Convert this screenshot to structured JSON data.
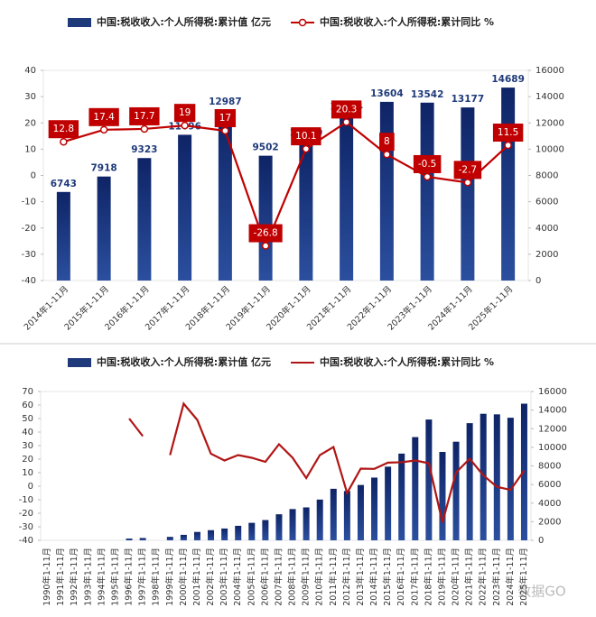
{
  "chart_data": [
    {
      "type": "bar",
      "legend": "top",
      "data_labels": true,
      "markers": true,
      "categories": [
        "2014年1-11月",
        "2015年1-11月",
        "2016年1-11月",
        "2017年1-11月",
        "2018年1-11月",
        "2019年1-11月",
        "2020年1-11月",
        "2021年1-11月",
        "2022年1-11月",
        "2023年1-11月",
        "2024年1-11月",
        "2025年1-11月"
      ],
      "series": [
        {
          "name": "中国:税收收入:个人所得税:累计值 亿元",
          "color": "#1f3a7a",
          "axis": "y2",
          "values": [
            6743,
            7918,
            9323,
            11096,
            12987,
            9502,
            10600,
            12594,
            13604,
            13542,
            13177,
            14689
          ]
        },
        {
          "name": "中国:税收收入:个人所得税:累计同比 %",
          "color": "#c00000",
          "type": "line",
          "axis": "y",
          "values": [
            12.8,
            17.4,
            17.7,
            19,
            17,
            -26.8,
            10.1,
            20.3,
            8,
            -0.5,
            -2.7,
            11.5
          ]
        }
      ],
      "ylim": [
        -40,
        40
      ],
      "yticks": [
        -40,
        -30,
        -20,
        -10,
        0,
        10,
        20,
        30,
        40
      ],
      "y2lim": [
        0,
        16000
      ],
      "y2ticks": [
        0,
        2000,
        4000,
        6000,
        8000,
        10000,
        12000,
        14000,
        16000
      ]
    },
    {
      "type": "bar",
      "legend": "top",
      "data_labels": false,
      "markers": false,
      "categories": [
        "1990年1-11月",
        "1991年1-11月",
        "1992年1-11月",
        "1993年1-11月",
        "1994年1-11月",
        "1995年1-11月",
        "1996年1-11月",
        "1997年1-11月",
        "1998年1-11月",
        "1999年1-11月",
        "2000年1-11月",
        "2001年1-11月",
        "2002年1-11月",
        "2003年1-11月",
        "2004年1-11月",
        "2005年1-11月",
        "2006年1-11月",
        "2007年1-11月",
        "2008年1-11月",
        "2009年1-11月",
        "2010年1-11月",
        "2011年1-11月",
        "2012年1-11月",
        "2013年1-11月",
        "2014年1-11月",
        "2015年1-11月",
        "2016年1-11月",
        "2017年1-11月",
        "2018年1-11月",
        "2019年1-11月",
        "2020年1-11月",
        "2021年1-11月",
        "2022年1-11月",
        "2023年1-11月",
        "2024年1-11月",
        "2025年1-11月"
      ],
      "series": [
        {
          "name": "中国:税收收入:个人所得税:累计值 亿元",
          "color": "#1f3a7a",
          "axis": "y2",
          "values": [
            null,
            null,
            null,
            null,
            null,
            null,
            190,
            250,
            null,
            370,
            590,
            900,
            1090,
            1270,
            1560,
            1880,
            2180,
            2800,
            3360,
            3540,
            4380,
            5540,
            5300,
            5950,
            6743,
            7918,
            9323,
            11096,
            12987,
            9502,
            10600,
            12594,
            13604,
            13542,
            13177,
            14689
          ]
        },
        {
          "name": "中国:税收收入:个人所得税:累计同比 %",
          "color": "#b01515",
          "type": "line",
          "axis": "y",
          "values": [
            null,
            null,
            null,
            null,
            null,
            null,
            50,
            37,
            null,
            23,
            61,
            49,
            24,
            19,
            23,
            21,
            18,
            31,
            21,
            6,
            23,
            29,
            -5,
            13,
            12.8,
            17.4,
            17.7,
            19,
            17,
            -26.8,
            10.1,
            20.3,
            8,
            -0.5,
            -2.7,
            11.5
          ]
        }
      ],
      "ylim": [
        -40,
        70
      ],
      "yticks": [
        -40,
        -30,
        -20,
        -10,
        0,
        10,
        20,
        30,
        40,
        50,
        60,
        70
      ],
      "y2lim": [
        0,
        16000
      ],
      "y2ticks": [
        0,
        2000,
        4000,
        6000,
        8000,
        10000,
        12000,
        14000,
        16000
      ]
    }
  ],
  "watermark": "数据GO"
}
